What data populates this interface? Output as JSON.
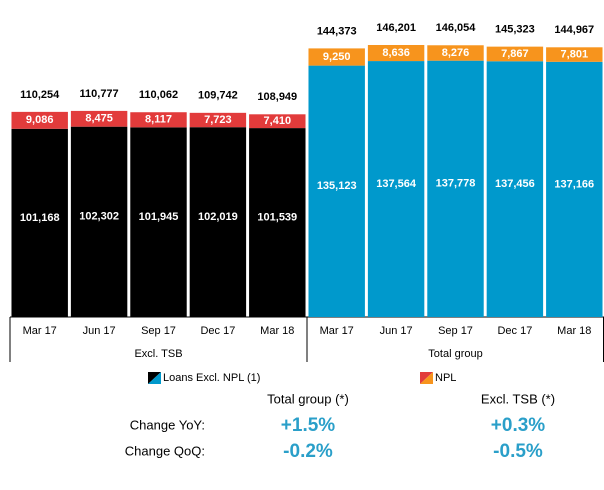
{
  "chart_data": {
    "type": "bar",
    "stacked": true,
    "legend": [
      {
        "name": "Loans Excl. NPL (1)",
        "colors": [
          "#000000",
          "#0099cc"
        ]
      },
      {
        "name": "NPL",
        "colors": [
          "#e23b3b",
          "#f7941d"
        ]
      }
    ],
    "groups": [
      {
        "name": "Excl. TSB",
        "categories": [
          "Mar 17",
          "Jun 17",
          "Sep 17",
          "Dec 17",
          "Mar 18"
        ],
        "series": [
          {
            "color": "#000000",
            "values": [
              101168,
              102302,
              101945,
              102019,
              101539
            ],
            "value_labels": [
              "101,168",
              "102,302",
              "101,945",
              "102,019",
              "101,539"
            ]
          },
          {
            "color": "#e23b3b",
            "values": [
              9086,
              8475,
              8117,
              7723,
              7410
            ],
            "value_labels": [
              "9,086",
              "8,475",
              "8,117",
              "7,723",
              "7,410"
            ]
          }
        ],
        "totals": [
          110254,
          110777,
          110062,
          109742,
          108949
        ],
        "total_labels": [
          "110,254",
          "110,777",
          "110,062",
          "109,742",
          "108,949"
        ]
      },
      {
        "name": "Total group",
        "categories": [
          "Mar 17",
          "Jun 17",
          "Sep 17",
          "Dec 17",
          "Mar 18"
        ],
        "series": [
          {
            "color": "#0099cc",
            "values": [
              135123,
              137564,
              137778,
              137456,
              137166
            ],
            "value_labels": [
              "135,123",
              "137,564",
              "137,778",
              "137,456",
              "137,166"
            ]
          },
          {
            "color": "#f7941d",
            "values": [
              9250,
              8636,
              8276,
              7867,
              7801
            ],
            "value_labels": [
              "9,250",
              "8,636",
              "8,276",
              "7,867",
              "7,801"
            ]
          }
        ],
        "totals": [
          144373,
          146201,
          146054,
          145323,
          144967
        ],
        "total_labels": [
          "144,373",
          "146,201",
          "146,054",
          "145,323",
          "144,967"
        ]
      }
    ]
  },
  "summary": {
    "columns": [
      "Total group (*)",
      "Excl. TSB (*)"
    ],
    "rows": [
      {
        "label": "Change YoY:",
        "values": [
          "+1.5%",
          "+0.3%"
        ]
      },
      {
        "label": "Change QoQ:",
        "values": [
          "-0.2%",
          "-0.5%"
        ]
      }
    ]
  }
}
